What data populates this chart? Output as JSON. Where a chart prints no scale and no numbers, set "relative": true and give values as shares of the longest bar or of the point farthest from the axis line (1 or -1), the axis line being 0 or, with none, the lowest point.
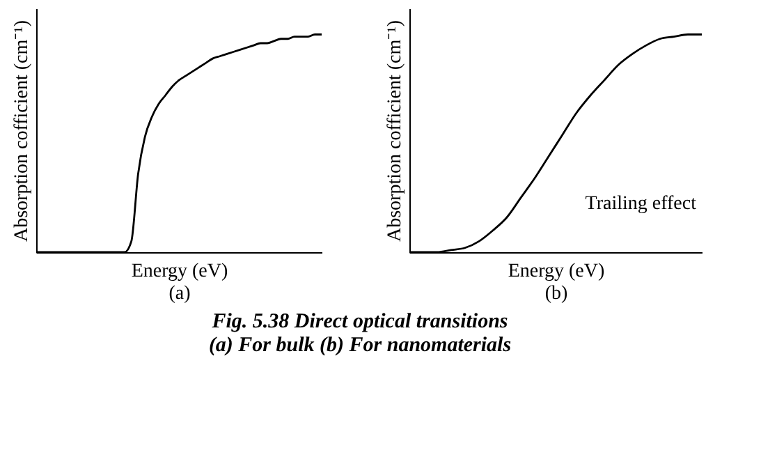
{
  "chart_data": [
    {
      "type": "line",
      "relative": true,
      "color": "#000000",
      "xlabel": "Energy (eV)",
      "ylabel": "Absorption cofficient (cm⁻¹)",
      "annotations": [
        "(a)",
        "Fig. 5.38 Direct optical transitions",
        "(a) For bulk (b) For nanomaterials"
      ],
      "categories": [
        null,
        null,
        null,
        null,
        null,
        null,
        null,
        null,
        null,
        null,
        null,
        null,
        null,
        null,
        null,
        null,
        null,
        null,
        null,
        null,
        null,
        null,
        null,
        null,
        null,
        null,
        null,
        null,
        null,
        null,
        null,
        null,
        null,
        null,
        null,
        null,
        null,
        null,
        null,
        null,
        null,
        null,
        null
      ],
      "values": [
        0,
        0,
        0,
        0,
        0,
        0,
        0,
        0,
        0,
        0,
        0,
        0,
        0,
        0,
        0.05,
        0.36,
        0.53,
        0.62,
        0.68,
        0.72,
        0.76,
        0.79,
        0.81,
        0.83,
        0.85,
        0.87,
        0.89,
        0.9,
        0.91,
        0.92,
        0.93,
        0.94,
        0.95,
        0.96,
        0.96,
        0.97,
        0.98,
        0.98,
        0.99,
        0.99,
        0.99,
        1,
        1
      ]
    },
    {
      "type": "line",
      "relative": true,
      "color": "#000000",
      "xlabel": "Energy (eV)",
      "ylabel": "Absorption cofficient (cm⁻¹)",
      "annotations": [
        "(b)",
        "Trailing effect"
      ],
      "categories": [
        null,
        null,
        null,
        null,
        null,
        null,
        null,
        null,
        null,
        null,
        null,
        null,
        null,
        null,
        null,
        null,
        null,
        null,
        null,
        null,
        null,
        null
      ],
      "values": [
        0,
        0,
        0,
        0.01,
        0.02,
        0.05,
        0.1,
        0.16,
        0.25,
        0.34,
        0.44,
        0.54,
        0.64,
        0.72,
        0.79,
        0.86,
        0.91,
        0.95,
        0.98,
        0.99,
        1,
        1
      ]
    }
  ]
}
